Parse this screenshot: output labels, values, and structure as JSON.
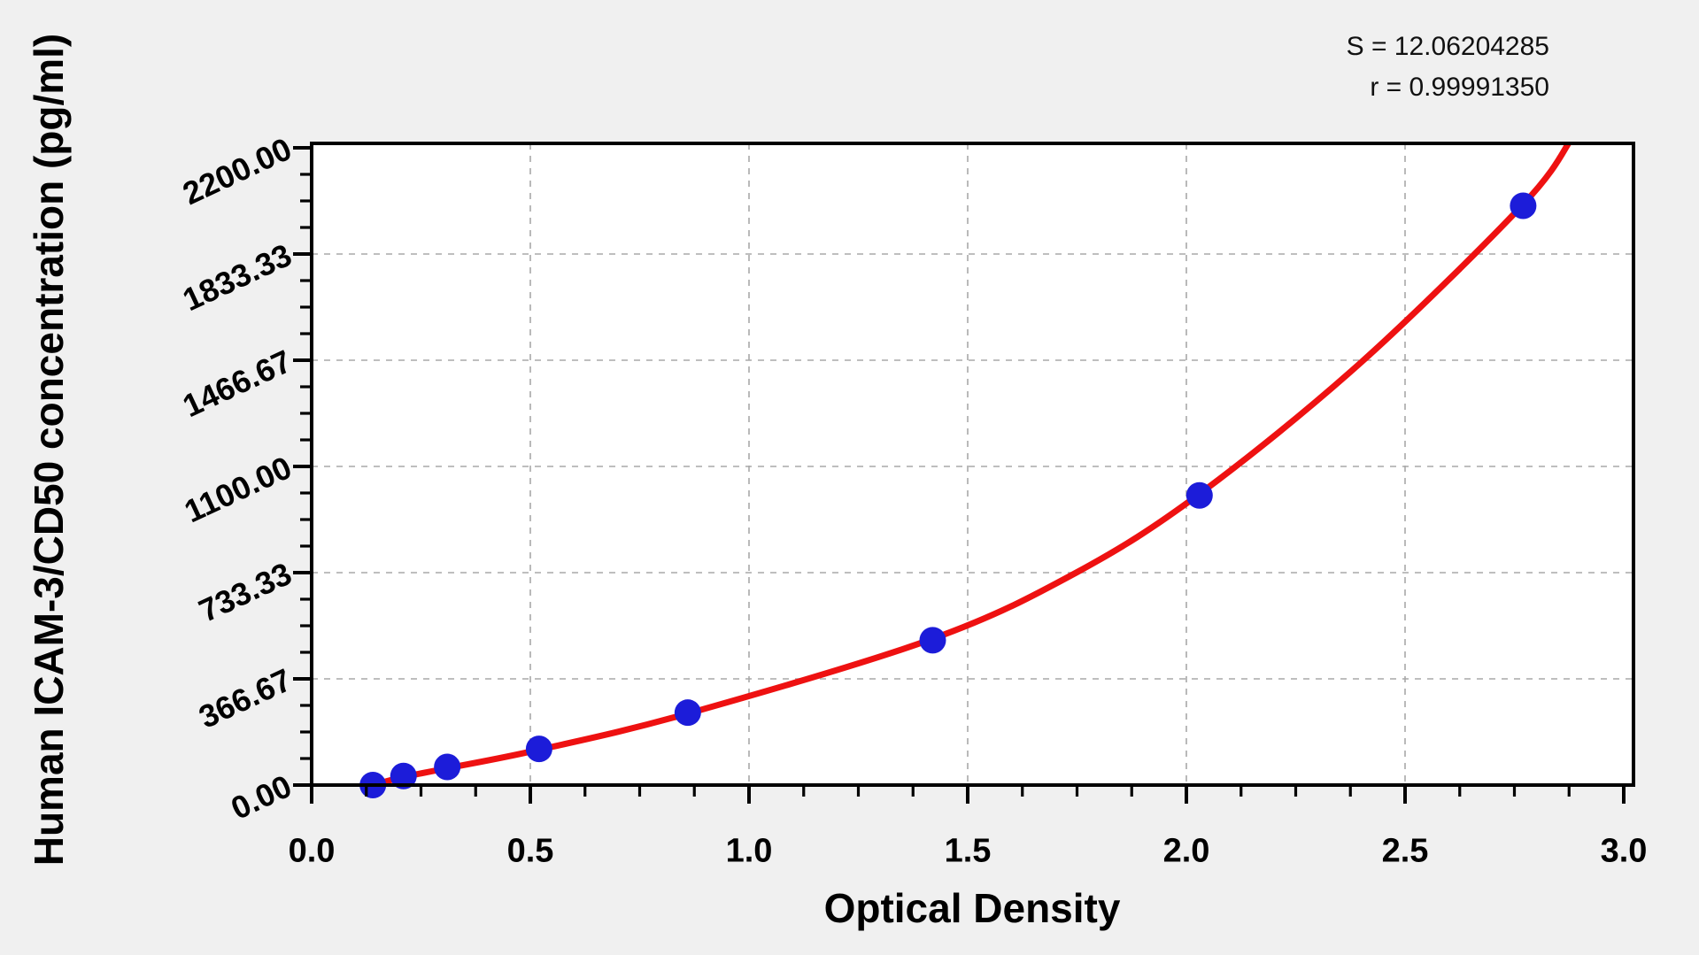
{
  "stats": {
    "s_line": "S = 12.06204285",
    "r_line": "r = 0.99991350"
  },
  "chart_data": {
    "type": "scatter",
    "title": "",
    "xlabel": "Optical Density",
    "ylabel": "Human ICAM-3/CD50 concentration (pg/ml)",
    "xlim": [
      0.0,
      3.0
    ],
    "ylim": [
      0.0,
      2200.0
    ],
    "grid": "dashed major gridlines on, no legend",
    "legend_position": "none",
    "x_ticks": [
      {
        "value": 0.0,
        "label": "0.0"
      },
      {
        "value": 0.5,
        "label": "0.5"
      },
      {
        "value": 1.0,
        "label": "1.0"
      },
      {
        "value": 1.5,
        "label": "1.5"
      },
      {
        "value": 2.0,
        "label": "2.0"
      },
      {
        "value": 2.5,
        "label": "2.5"
      },
      {
        "value": 3.0,
        "label": "3.0"
      }
    ],
    "y_ticks": [
      {
        "value": 0.0,
        "label": "0.00"
      },
      {
        "value": 366.67,
        "label": "366.67"
      },
      {
        "value": 733.33,
        "label": "733.33"
      },
      {
        "value": 1100.0,
        "label": "1100.00"
      },
      {
        "value": 1466.67,
        "label": "1466.67"
      },
      {
        "value": 1833.33,
        "label": "1833.33"
      },
      {
        "value": 2200.0,
        "label": "2200.00"
      }
    ],
    "x_minor_step": 0.125,
    "y_minor_step": 91.6675,
    "grid_vertical_at": [
      0.5,
      1.0,
      1.5,
      2.0,
      2.5
    ],
    "grid_horizontal_at": [
      366.67,
      733.33,
      1100.0,
      1466.67,
      1833.33
    ],
    "series": [
      {
        "name": "standard-points",
        "type": "scatter",
        "color": "#1c1cd9",
        "marker_radius": 15,
        "points": [
          {
            "x": 0.14,
            "y": 0
          },
          {
            "x": 0.21,
            "y": 31.2
          },
          {
            "x": 0.31,
            "y": 62.5
          },
          {
            "x": 0.52,
            "y": 125
          },
          {
            "x": 0.86,
            "y": 250
          },
          {
            "x": 1.42,
            "y": 500
          },
          {
            "x": 2.03,
            "y": 1000
          },
          {
            "x": 2.77,
            "y": 2000
          }
        ]
      },
      {
        "name": "fitted-curve",
        "type": "line",
        "color": "#ee1111",
        "line_width": 7,
        "points": [
          {
            "x": 0.05,
            "y": -15
          },
          {
            "x": 0.14,
            "y": 2
          },
          {
            "x": 0.21,
            "y": 28
          },
          {
            "x": 0.31,
            "y": 58
          },
          {
            "x": 0.52,
            "y": 122
          },
          {
            "x": 0.86,
            "y": 247
          },
          {
            "x": 1.42,
            "y": 505
          },
          {
            "x": 1.75,
            "y": 735
          },
          {
            "x": 2.03,
            "y": 1005
          },
          {
            "x": 2.4,
            "y": 1460
          },
          {
            "x": 2.77,
            "y": 2005
          },
          {
            "x": 2.88,
            "y": 2230
          }
        ]
      }
    ],
    "style": {
      "page_background": "#f0f0f0",
      "plot_background": "#ffffff",
      "frame_color": "#000000",
      "gridline_color": "#a8a8a8",
      "tick_label_color": "#000000"
    }
  }
}
